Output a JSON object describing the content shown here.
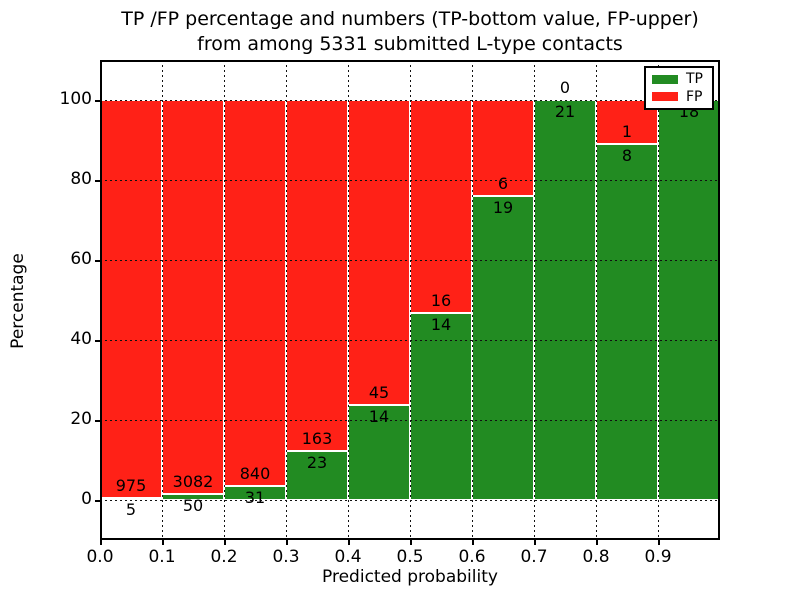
{
  "figure": {
    "title_line1": "TP /FP percentage and numbers (TP-bottom value, FP-upper)",
    "title_line2": "from among 5331 submitted L-type contacts"
  },
  "chart_data": {
    "type": "bar",
    "subtype": "stacked-percentage-histogram",
    "title": "TP /FP percentage and numbers (TP-bottom value, FP-upper)\nfrom among 5331 submitted L-type contacts",
    "xlabel": "Predicted probability",
    "ylabel": "Percentage",
    "total_contacts": 5331,
    "xlim": [
      0.0,
      1.0
    ],
    "ylim": [
      -10,
      110
    ],
    "xtick_labels": [
      "0.0",
      "0.1",
      "0.2",
      "0.3",
      "0.4",
      "0.5",
      "0.6",
      "0.7",
      "0.8",
      "0.9"
    ],
    "ytick_values": [
      0,
      20,
      40,
      60,
      80,
      100
    ],
    "grid": true,
    "grid_style": "dotted",
    "bar_edge_color": "#ffffff",
    "legend": {
      "position": "upper right",
      "entries": [
        {
          "label": "TP",
          "color": "#228b22"
        },
        {
          "label": "FP",
          "color": "#ff2117"
        }
      ]
    },
    "bins": [
      {
        "x_start": 0.0,
        "x_end": 0.1,
        "tp": 5,
        "fp": 975,
        "tp_pct": 0.51,
        "fp_pct": 99.49
      },
      {
        "x_start": 0.1,
        "x_end": 0.2,
        "tp": 50,
        "fp": 3082,
        "tp_pct": 1.6,
        "fp_pct": 98.4
      },
      {
        "x_start": 0.2,
        "x_end": 0.3,
        "tp": 31,
        "fp": 840,
        "tp_pct": 3.56,
        "fp_pct": 96.44
      },
      {
        "x_start": 0.3,
        "x_end": 0.4,
        "tp": 23,
        "fp": 163,
        "tp_pct": 12.37,
        "fp_pct": 87.63
      },
      {
        "x_start": 0.4,
        "x_end": 0.5,
        "tp": 14,
        "fp": 45,
        "tp_pct": 23.73,
        "fp_pct": 76.27
      },
      {
        "x_start": 0.5,
        "x_end": 0.6,
        "tp": 14,
        "fp": 16,
        "tp_pct": 46.67,
        "fp_pct": 53.33
      },
      {
        "x_start": 0.6,
        "x_end": 0.7,
        "tp": 19,
        "fp": 6,
        "tp_pct": 76.0,
        "fp_pct": 24.0
      },
      {
        "x_start": 0.7,
        "x_end": 0.8,
        "tp": 21,
        "fp": 0,
        "tp_pct": 100.0,
        "fp_pct": 0.0
      },
      {
        "x_start": 0.8,
        "x_end": 0.9,
        "tp": 8,
        "fp": 1,
        "tp_pct": 88.89,
        "fp_pct": 11.11
      },
      {
        "x_start": 0.9,
        "x_end": 1.0,
        "tp": 18,
        "fp": 0,
        "tp_pct": 100.0,
        "fp_pct": 0.0
      }
    ]
  }
}
